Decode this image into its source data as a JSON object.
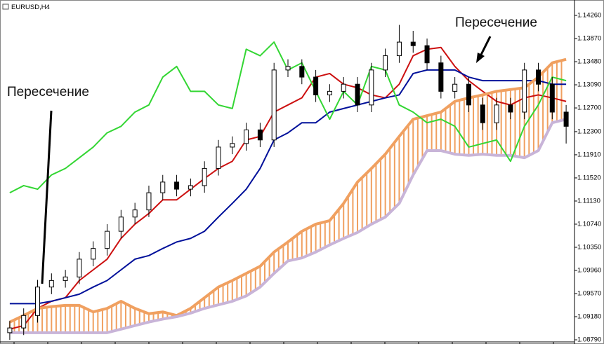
{
  "chart_data": {
    "type": "candlestick",
    "title": "EURUSD,H4",
    "annotations": [
      "Пересечение",
      "Пересечение"
    ],
    "ylim": [
      1.08743,
      1.1452
    ],
    "yticks": [
      {
        "value": 1.0879,
        "label": "1.08790"
      },
      {
        "value": 1.0918,
        "label": "1.09180"
      },
      {
        "value": 1.0957,
        "label": "1.09570"
      },
      {
        "value": 1.0996,
        "label": "1.09960"
      },
      {
        "value": 1.1035,
        "label": "1.10350"
      },
      {
        "value": 1.1074,
        "label": "1.10740"
      },
      {
        "value": 1.1113,
        "label": "1.11130"
      },
      {
        "value": 1.1152,
        "label": "1.11520"
      },
      {
        "value": 1.1191,
        "label": "1.11910"
      },
      {
        "value": 1.123,
        "label": "1.12300"
      },
      {
        "value": 1.127,
        "label": "1.12700"
      },
      {
        "value": 1.1309,
        "label": "1.13090"
      },
      {
        "value": 1.1348,
        "label": "1.13480"
      },
      {
        "value": 1.1387,
        "label": "1.13870"
      },
      {
        "value": 1.1426,
        "label": "1.14260"
      }
    ],
    "up_color": "#ffffff",
    "down_color": "#000000",
    "open": [
      1.0891,
      1.0899,
      1.092,
      1.0968,
      1.0979,
      1.0985,
      1.1015,
      1.1033,
      1.1062,
      1.1086,
      1.1098,
      1.1127,
      1.1145,
      1.1133,
      1.1139,
      1.1168,
      1.1204,
      1.121,
      1.1233,
      1.1216,
      1.1334,
      1.134,
      1.1322,
      1.1292,
      1.1298,
      1.131,
      1.1275,
      1.1334,
      1.1358,
      1.1381,
      1.1375,
      1.1346,
      1.1298,
      1.131,
      1.1275,
      1.1245,
      1.1275,
      1.1263,
      1.1334,
      1.131,
      1.1263
    ],
    "high": [
      1.0911,
      1.0932,
      1.098,
      1.0991,
      1.0997,
      1.1027,
      1.1045,
      1.1074,
      1.1098,
      1.111,
      1.1139,
      1.1157,
      1.1157,
      1.1151,
      1.118,
      1.1216,
      1.1222,
      1.1245,
      1.1245,
      1.1346,
      1.1352,
      1.1352,
      1.1334,
      1.131,
      1.1322,
      1.1322,
      1.1346,
      1.137,
      1.141,
      1.14,
      1.1387,
      1.1358,
      1.1322,
      1.1322,
      1.1287,
      1.1287,
      1.1287,
      1.1346,
      1.1346,
      1.1322,
      1.1275
    ],
    "low": [
      1.0879,
      1.0887,
      1.0908,
      1.0956,
      1.0967,
      1.0973,
      1.1003,
      1.1021,
      1.105,
      1.1074,
      1.1086,
      1.1115,
      1.1121,
      1.1121,
      1.1127,
      1.1156,
      1.1192,
      1.1198,
      1.1204,
      1.1204,
      1.1322,
      1.131,
      1.128,
      1.128,
      1.1286,
      1.1263,
      1.1263,
      1.1322,
      1.1346,
      1.1363,
      1.1334,
      1.1286,
      1.1286,
      1.1263,
      1.1233,
      1.1233,
      1.1251,
      1.1251,
      1.1298,
      1.1251,
      1.121
    ],
    "close": [
      1.0899,
      1.092,
      1.0968,
      1.0979,
      1.0985,
      1.1015,
      1.1033,
      1.1062,
      1.1086,
      1.1098,
      1.1127,
      1.1145,
      1.1133,
      1.1139,
      1.1168,
      1.1204,
      1.121,
      1.1233,
      1.1216,
      1.1334,
      1.134,
      1.1322,
      1.1292,
      1.1298,
      1.131,
      1.1275,
      1.1334,
      1.1358,
      1.1381,
      1.1375,
      1.1346,
      1.1298,
      1.131,
      1.1275,
      1.1245,
      1.1275,
      1.1263,
      1.1334,
      1.131,
      1.1263,
      1.1239
    ],
    "cloud": {
      "color": "#f0a060",
      "series": [
        2,
        3
      ]
    },
    "series": [
      {
        "color": "#cc1010",
        "width": 2,
        "values": [
          1.0897,
          1.0903,
          1.0932,
          1.0944,
          1.095,
          1.0979,
          1.0997,
          1.1015,
          1.105,
          1.1074,
          1.1092,
          1.1115,
          1.1115,
          1.1133,
          1.1151,
          1.1168,
          1.118,
          1.1216,
          1.1222,
          1.1263,
          1.1275,
          1.1287,
          1.1322,
          1.1328,
          1.131,
          1.1304,
          1.1292,
          1.1287,
          1.131,
          1.1358,
          1.1369,
          1.1372,
          1.134,
          1.1316,
          1.1298,
          1.1281,
          1.1275,
          1.1287,
          1.1292,
          1.1287,
          1.1281
        ]
      },
      {
        "color": "#00109a",
        "width": 2,
        "values": [
          1.094,
          1.094,
          1.094,
          1.0944,
          1.095,
          1.0956,
          1.0968,
          1.0979,
          1.0997,
          1.1015,
          1.1021,
          1.1033,
          1.1044,
          1.105,
          1.1062,
          1.1086,
          1.1109,
          1.1133,
          1.1168,
          1.1216,
          1.1228,
          1.1245,
          1.1245,
          1.1263,
          1.1269,
          1.1275,
          1.1281,
          1.1287,
          1.1292,
          1.1328,
          1.1334,
          1.1334,
          1.1334,
          1.1322,
          1.1316,
          1.1316,
          1.1316,
          1.1316,
          1.1316,
          1.131,
          1.131
        ]
      },
      {
        "color": "#f0a060",
        "width": 4,
        "values": [
          1.0909,
          1.092,
          1.0932,
          1.0935,
          1.0937,
          1.0937,
          1.0926,
          1.0932,
          1.0944,
          1.0932,
          1.0923,
          1.0926,
          1.092,
          1.0932,
          1.095,
          1.0968,
          1.0979,
          1.0991,
          1.1003,
          1.1027,
          1.1044,
          1.1062,
          1.1074,
          1.108,
          1.1109,
          1.1145,
          1.1168,
          1.1192,
          1.1222,
          1.1251,
          1.1257,
          1.1263,
          1.1281,
          1.1287,
          1.1292,
          1.1298,
          1.1301,
          1.1304,
          1.1322,
          1.1346,
          1.1352
        ]
      },
      {
        "color": "#c8b4d8",
        "width": 4,
        "values": [
          1.0891,
          1.0891,
          1.0891,
          1.0891,
          1.0891,
          1.0891,
          1.0891,
          1.0891,
          1.0897,
          1.0903,
          1.0909,
          1.0914,
          1.0918,
          1.0924,
          1.0932,
          1.0938,
          1.0944,
          1.0953,
          1.0968,
          1.0991,
          1.1012,
          1.1017,
          1.1027,
          1.1039,
          1.105,
          1.106,
          1.1074,
          1.1086,
          1.1109,
          1.1157,
          1.1198,
          1.1198,
          1.1192,
          1.119,
          1.1192,
          1.119,
          1.119,
          1.1186,
          1.1198,
          1.1245,
          1.1251
        ]
      },
      {
        "color": "#33d633",
        "width": 2,
        "values": [
          1.1127,
          1.1139,
          1.1133,
          1.1157,
          1.1168,
          1.1186,
          1.1204,
          1.1228,
          1.1239,
          1.1263,
          1.1275,
          1.1322,
          1.134,
          1.1298,
          1.1298,
          1.1275,
          1.1269,
          1.1369,
          1.1358,
          1.1381,
          1.1334,
          1.1346,
          1.1298,
          1.1251,
          1.1298,
          1.1275,
          1.134,
          1.1334,
          1.1275,
          1.1263,
          1.1245,
          1.1251,
          1.1239,
          1.1204,
          1.121,
          1.1216,
          1.118,
          1.1239,
          1.1275,
          1.1322,
          1.1316
        ]
      }
    ]
  }
}
